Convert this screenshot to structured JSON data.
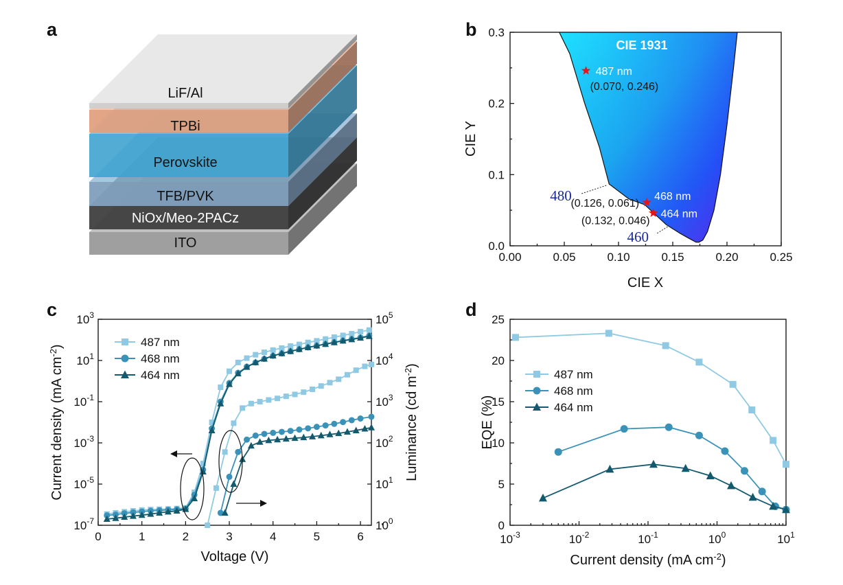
{
  "figure": {
    "panel_labels": [
      "a",
      "b",
      "c",
      "d"
    ]
  },
  "panel_a": {
    "layers": [
      {
        "name": "LiF/Al",
        "color": "#cfcfcf"
      },
      {
        "name": "TPBi",
        "color": "#e0a07e"
      },
      {
        "name": "Perovskite",
        "color": "#3fa3cf"
      },
      {
        "name": "TFB/PVK",
        "color": "#7f9fbc"
      },
      {
        "name": "NiOx/Meo-2PACz",
        "color": "#3f3f3f"
      },
      {
        "name": "ITO",
        "color": "#9a9a9a"
      }
    ]
  },
  "chart_data": [
    {
      "panel": "b",
      "type": "scatter",
      "title": "CIE 1931",
      "xlabel": "CIE X",
      "ylabel": "CIE Y",
      "xlim": [
        0,
        0.25
      ],
      "ylim": [
        0,
        0.3
      ],
      "xticks": [
        "0.00",
        "0.05",
        "0.10",
        "0.15",
        "0.20",
        "0.25"
      ],
      "yticks": [
        "0.0",
        "0.1",
        "0.2",
        "0.3"
      ],
      "locus_labels": [
        {
          "text": "480",
          "x": 0.0913,
          "y": 0.0868
        },
        {
          "text": "460",
          "x": 0.144,
          "y": 0.0297
        }
      ],
      "points": [
        {
          "name": "487 nm",
          "coord_label": "(0.070, 0.246)",
          "x": 0.07,
          "y": 0.246
        },
        {
          "name": "468 nm",
          "coord_label": "(0.126, 0.061)",
          "x": 0.126,
          "y": 0.061
        },
        {
          "name": "464 nm",
          "coord_label": "(0.132, 0.046)",
          "x": 0.132,
          "y": 0.046
        }
      ]
    },
    {
      "panel": "c",
      "type": "line",
      "xlabel": "Voltage (V)",
      "ylabel_left": "Current density (mA cm⁻²)",
      "ylabel_right": "Luminance (cd m⁻²)",
      "xlim": [
        0,
        6.25
      ],
      "ylim_left_log10": [
        -7,
        3
      ],
      "ylim_right_log10": [
        0,
        5
      ],
      "xticks": [
        "0",
        "1",
        "2",
        "3",
        "4",
        "5",
        "6"
      ],
      "yticks_left_exp": [
        "-7",
        "-5",
        "-3",
        "-1",
        "1",
        "3"
      ],
      "yticks_right_exp": [
        "0",
        "1",
        "2",
        "3",
        "4",
        "5"
      ],
      "series": [
        {
          "name": "487 nm",
          "color": "#8fc9e3",
          "marker": "square",
          "current_density": [
            [
              0.2,
              3.5e-07
            ],
            [
              0.4,
              4e-07
            ],
            [
              0.6,
              4.5e-07
            ],
            [
              0.8,
              5e-07
            ],
            [
              1.0,
              5.5e-07
            ],
            [
              1.2,
              5.8e-07
            ],
            [
              1.4,
              6e-07
            ],
            [
              1.6,
              6.2e-07
            ],
            [
              1.8,
              6.5e-07
            ],
            [
              2.0,
              7e-07
            ],
            [
              2.2,
              4e-06
            ],
            [
              2.4,
              0.0001
            ],
            [
              2.6,
              0.01
            ],
            [
              2.8,
              0.5
            ],
            [
              3.0,
              3
            ],
            [
              3.2,
              8
            ],
            [
              3.4,
              13
            ],
            [
              3.6,
              19
            ],
            [
              3.8,
              25
            ],
            [
              4.0,
              32
            ],
            [
              4.2,
              40
            ],
            [
              4.4,
              50
            ],
            [
              4.6,
              60
            ],
            [
              4.8,
              75
            ],
            [
              5.0,
              90
            ],
            [
              5.2,
              110
            ],
            [
              5.4,
              135
            ],
            [
              5.6,
              165
            ],
            [
              5.8,
              200
            ],
            [
              6.0,
              250
            ],
            [
              6.2,
              300
            ]
          ],
          "luminance": [
            [
              2.5,
              1
            ],
            [
              2.7,
              8
            ],
            [
              2.9,
              60
            ],
            [
              3.1,
              300
            ],
            [
              3.3,
              700
            ],
            [
              3.5,
              900
            ],
            [
              3.7,
              1000
            ],
            [
              3.9,
              1100
            ],
            [
              4.1,
              1200
            ],
            [
              4.3,
              1350
            ],
            [
              4.5,
              1500
            ],
            [
              4.7,
              1700
            ],
            [
              4.9,
              2000
            ],
            [
              5.1,
              2400
            ],
            [
              5.3,
              2900
            ],
            [
              5.5,
              3500
            ],
            [
              5.7,
              4500
            ],
            [
              5.9,
              5800
            ],
            [
              6.1,
              7200
            ],
            [
              6.25,
              8000
            ]
          ]
        },
        {
          "name": "468 nm",
          "color": "#3a92b8",
          "marker": "circle",
          "current_density": [
            [
              0.2,
              3e-07
            ],
            [
              0.4,
              3.3e-07
            ],
            [
              0.6,
              3.8e-07
            ],
            [
              0.8,
              4.2e-07
            ],
            [
              1.0,
              4.6e-07
            ],
            [
              1.2,
              5e-07
            ],
            [
              1.4,
              5.3e-07
            ],
            [
              1.6,
              5.6e-07
            ],
            [
              1.8,
              5.9e-07
            ],
            [
              2.0,
              6.3e-07
            ],
            [
              2.2,
              3e-06
            ],
            [
              2.4,
              5e-05
            ],
            [
              2.6,
              0.005
            ],
            [
              2.8,
              0.1
            ],
            [
              3.0,
              0.8
            ],
            [
              3.2,
              2.5
            ],
            [
              3.4,
              5
            ],
            [
              3.6,
              8
            ],
            [
              3.8,
              12
            ],
            [
              4.0,
              17
            ],
            [
              4.2,
              22
            ],
            [
              4.4,
              28
            ],
            [
              4.6,
              35
            ],
            [
              4.8,
              43
            ],
            [
              5.0,
              52
            ],
            [
              5.2,
              63
            ],
            [
              5.4,
              77
            ],
            [
              5.6,
              92
            ],
            [
              5.8,
              110
            ],
            [
              6.0,
              130
            ],
            [
              6.2,
              160
            ]
          ],
          "luminance": [
            [
              2.8,
              2
            ],
            [
              3.0,
              15
            ],
            [
              3.2,
              60
            ],
            [
              3.4,
              120
            ],
            [
              3.6,
              150
            ],
            [
              3.8,
              165
            ],
            [
              4.0,
              175
            ],
            [
              4.2,
              185
            ],
            [
              4.4,
              195
            ],
            [
              4.6,
              210
            ],
            [
              4.8,
              225
            ],
            [
              5.0,
              245
            ],
            [
              5.2,
              265
            ],
            [
              5.4,
              290
            ],
            [
              5.6,
              320
            ],
            [
              5.8,
              355
            ],
            [
              6.0,
              390
            ],
            [
              6.25,
              430
            ]
          ]
        },
        {
          "name": "464 nm",
          "color": "#145a6e",
          "marker": "triangle",
          "current_density": [
            [
              0.2,
              2e-07
            ],
            [
              0.4,
              2.2e-07
            ],
            [
              0.6,
              2.5e-07
            ],
            [
              0.8,
              2.8e-07
            ],
            [
              1.0,
              3.1e-07
            ],
            [
              1.2,
              3.5e-07
            ],
            [
              1.4,
              4e-07
            ],
            [
              1.6,
              4.5e-07
            ],
            [
              1.8,
              5e-07
            ],
            [
              2.0,
              6e-07
            ],
            [
              2.2,
              2e-06
            ],
            [
              2.4,
              4e-05
            ],
            [
              2.6,
              0.004
            ],
            [
              2.8,
              0.08
            ],
            [
              3.0,
              0.7
            ],
            [
              3.2,
              2.3
            ],
            [
              3.4,
              4.8
            ],
            [
              3.6,
              8
            ],
            [
              3.8,
              12
            ],
            [
              4.0,
              17
            ],
            [
              4.2,
              22
            ],
            [
              4.4,
              28
            ],
            [
              4.6,
              35
            ],
            [
              4.8,
              43
            ],
            [
              5.0,
              52
            ],
            [
              5.2,
              62
            ],
            [
              5.4,
              75
            ],
            [
              5.6,
              90
            ],
            [
              5.8,
              105
            ],
            [
              6.0,
              125
            ],
            [
              6.2,
              150
            ]
          ],
          "luminance": [
            [
              2.9,
              2
            ],
            [
              3.1,
              10
            ],
            [
              3.3,
              40
            ],
            [
              3.5,
              85
            ],
            [
              3.7,
              105
            ],
            [
              3.9,
              115
            ],
            [
              4.1,
              120
            ],
            [
              4.3,
              125
            ],
            [
              4.5,
              130
            ],
            [
              4.7,
              135
            ],
            [
              4.9,
              142
            ],
            [
              5.1,
              150
            ],
            [
              5.3,
              160
            ],
            [
              5.5,
              170
            ],
            [
              5.7,
              185
            ],
            [
              5.9,
              200
            ],
            [
              6.1,
              220
            ],
            [
              6.25,
              235
            ]
          ]
        }
      ]
    },
    {
      "panel": "d",
      "type": "line",
      "xlabel": "Current density (mA cm⁻²)",
      "ylabel": "EQE (%)",
      "xlim_log10": [
        -3,
        1
      ],
      "ylim": [
        0,
        25
      ],
      "xticks_exp": [
        "-3",
        "-2",
        "-1",
        "0",
        "1"
      ],
      "yticks": [
        "0",
        "5",
        "10",
        "15",
        "20",
        "25"
      ],
      "series": [
        {
          "name": "487 nm",
          "color": "#8fc9e3",
          "marker": "square",
          "points": [
            [
              0.0012,
              22.8
            ],
            [
              0.027,
              23.3
            ],
            [
              0.18,
              21.8
            ],
            [
              0.55,
              19.8
            ],
            [
              1.7,
              17.1
            ],
            [
              3.2,
              14.0
            ],
            [
              6.5,
              10.3
            ],
            [
              10,
              7.4
            ]
          ]
        },
        {
          "name": "468 nm",
          "color": "#3a92b8",
          "marker": "circle",
          "points": [
            [
              0.005,
              8.9
            ],
            [
              0.045,
              11.7
            ],
            [
              0.2,
              11.9
            ],
            [
              0.55,
              10.9
            ],
            [
              1.3,
              9.0
            ],
            [
              2.5,
              6.6
            ],
            [
              4.5,
              4.1
            ],
            [
              7.0,
              2.3
            ],
            [
              10,
              1.9
            ]
          ]
        },
        {
          "name": "464 nm",
          "color": "#145a6e",
          "marker": "triangle",
          "points": [
            [
              0.003,
              3.3
            ],
            [
              0.028,
              6.8
            ],
            [
              0.12,
              7.4
            ],
            [
              0.35,
              6.9
            ],
            [
              0.8,
              6.0
            ],
            [
              1.6,
              4.8
            ],
            [
              3.3,
              3.4
            ],
            [
              6.5,
              2.3
            ],
            [
              10,
              1.9
            ]
          ]
        }
      ]
    }
  ]
}
